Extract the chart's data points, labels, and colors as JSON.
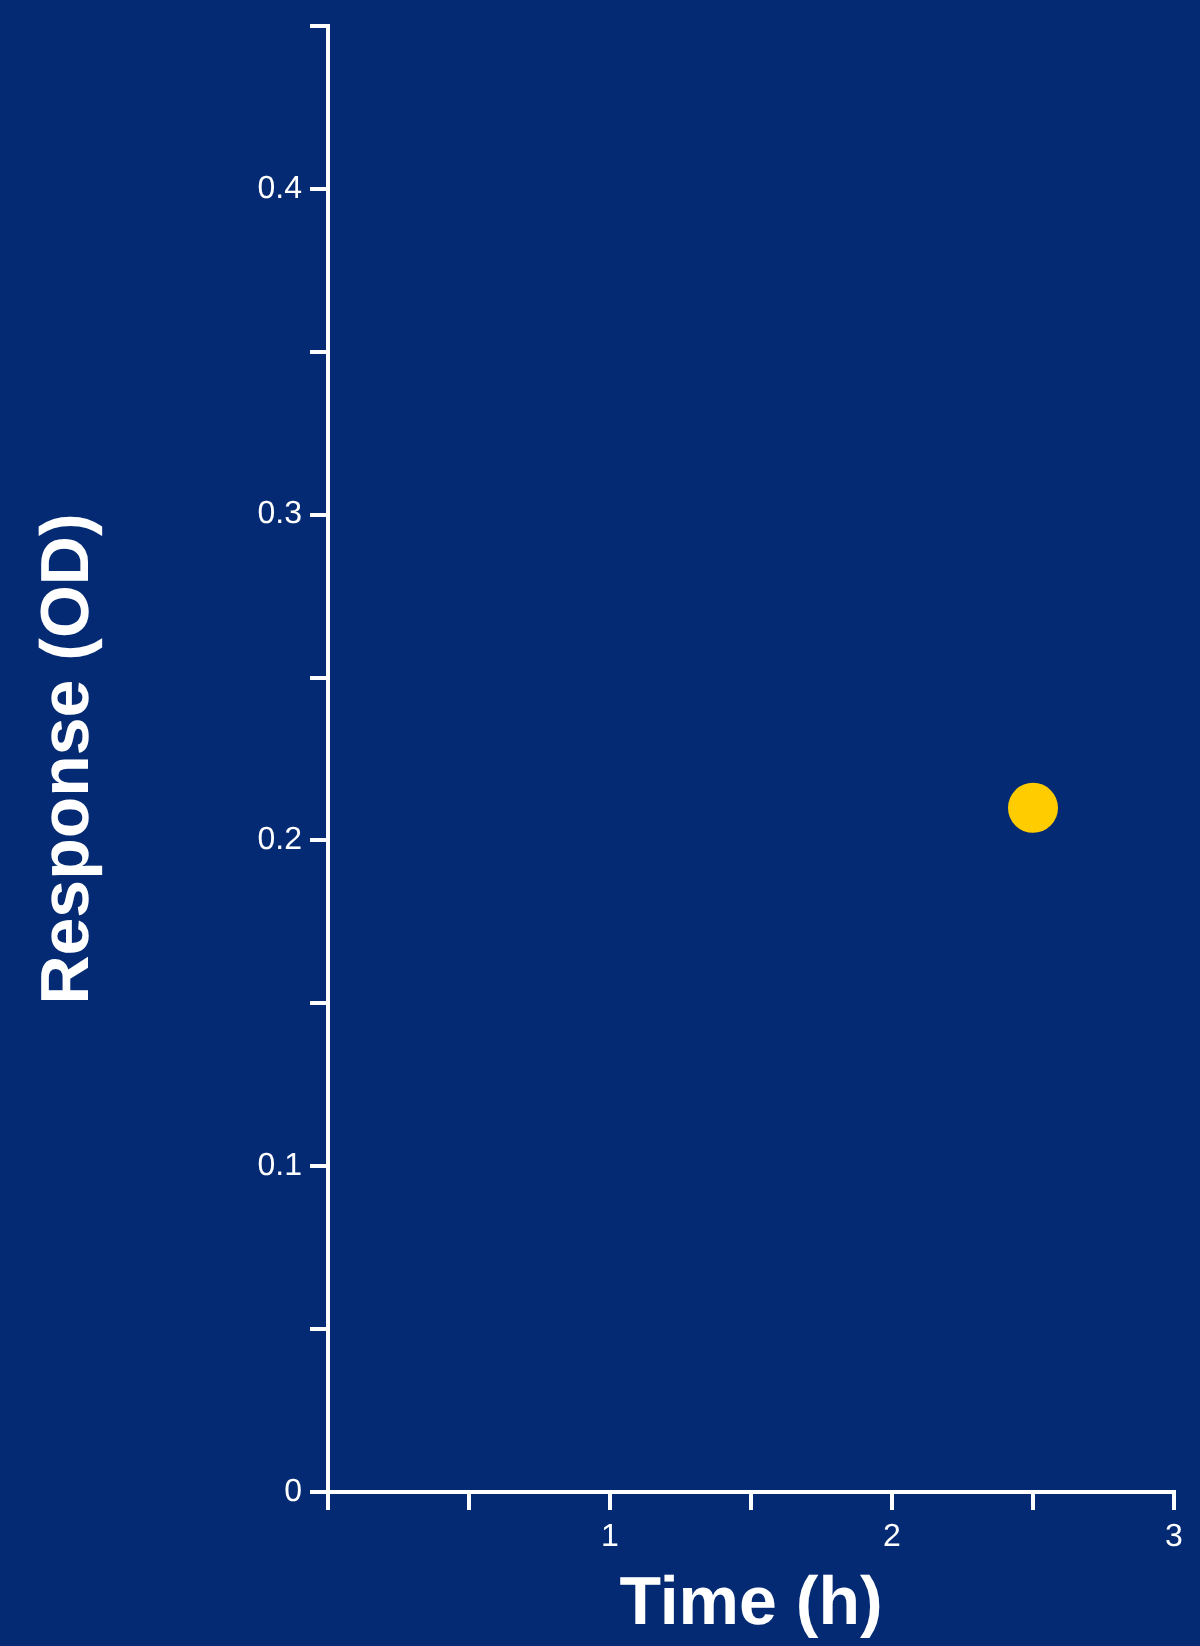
{
  "chart_data": {
    "type": "scatter",
    "xlabel": "Time (h)",
    "ylabel": "Response (OD)",
    "x": [
      2.5
    ],
    "values": [
      0.21
    ],
    "color": "#ffcc00",
    "marker": "circle",
    "grid": false,
    "legend": false,
    "xlim": [
      0,
      3
    ],
    "ylim": [
      0,
      0.45
    ],
    "xticks": [
      {
        "value": 0,
        "label": null
      },
      {
        "value": 0.5,
        "label": null
      },
      1,
      {
        "value": 1.5,
        "label": null
      },
      2,
      {
        "value": 2.5,
        "label": null
      },
      3
    ],
    "yticks": [
      0,
      {
        "value": 0.05,
        "label": null
      },
      0.1,
      {
        "value": 0.15,
        "label": null
      },
      0.2,
      {
        "value": 0.25,
        "label": null
      },
      0.3,
      {
        "value": 0.35,
        "label": null
      },
      0.4,
      {
        "value": 0.45,
        "label": null
      }
    ]
  }
}
